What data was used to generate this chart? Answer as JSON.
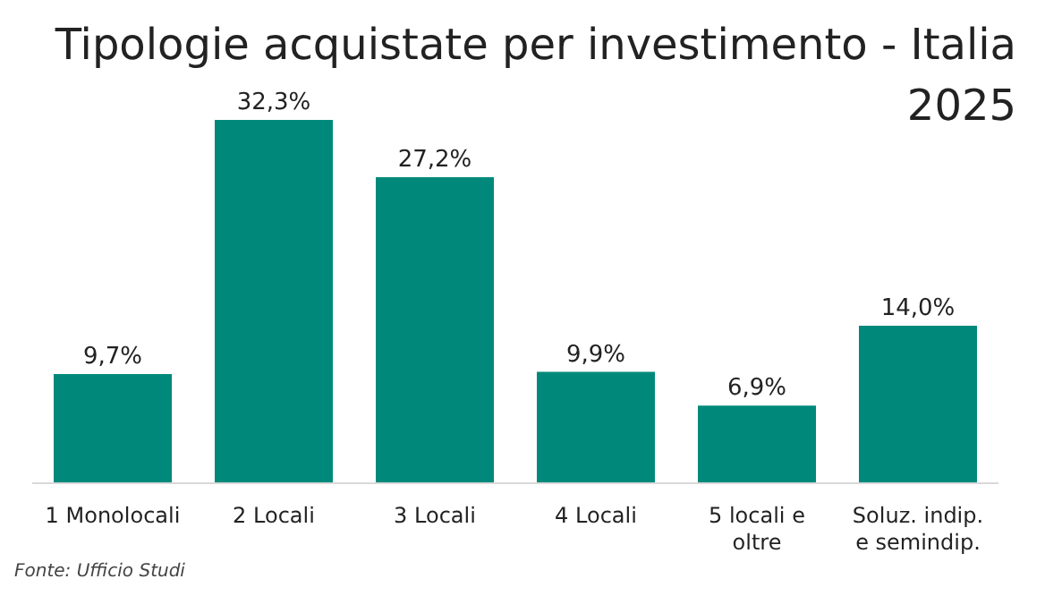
{
  "chart_data": {
    "type": "bar",
    "title": "Tipologie acquistate per investimento - Italia 2025",
    "categories": [
      "1 Monolocali",
      "2 Locali",
      "3 Locali",
      "4 Locali",
      "5 locali e oltre",
      "Soluz. indip. e semindip."
    ],
    "values": [
      9.7,
      32.3,
      27.2,
      9.9,
      6.9,
      14.0
    ],
    "value_labels": [
      "9,7%",
      "32,3%",
      "27,2%",
      "9,9%",
      "6,9%",
      "14,0%"
    ],
    "color": "#00897b",
    "tick_labels": "x",
    "annotations": [
      "Fonte: Ufficio Studi"
    ]
  }
}
